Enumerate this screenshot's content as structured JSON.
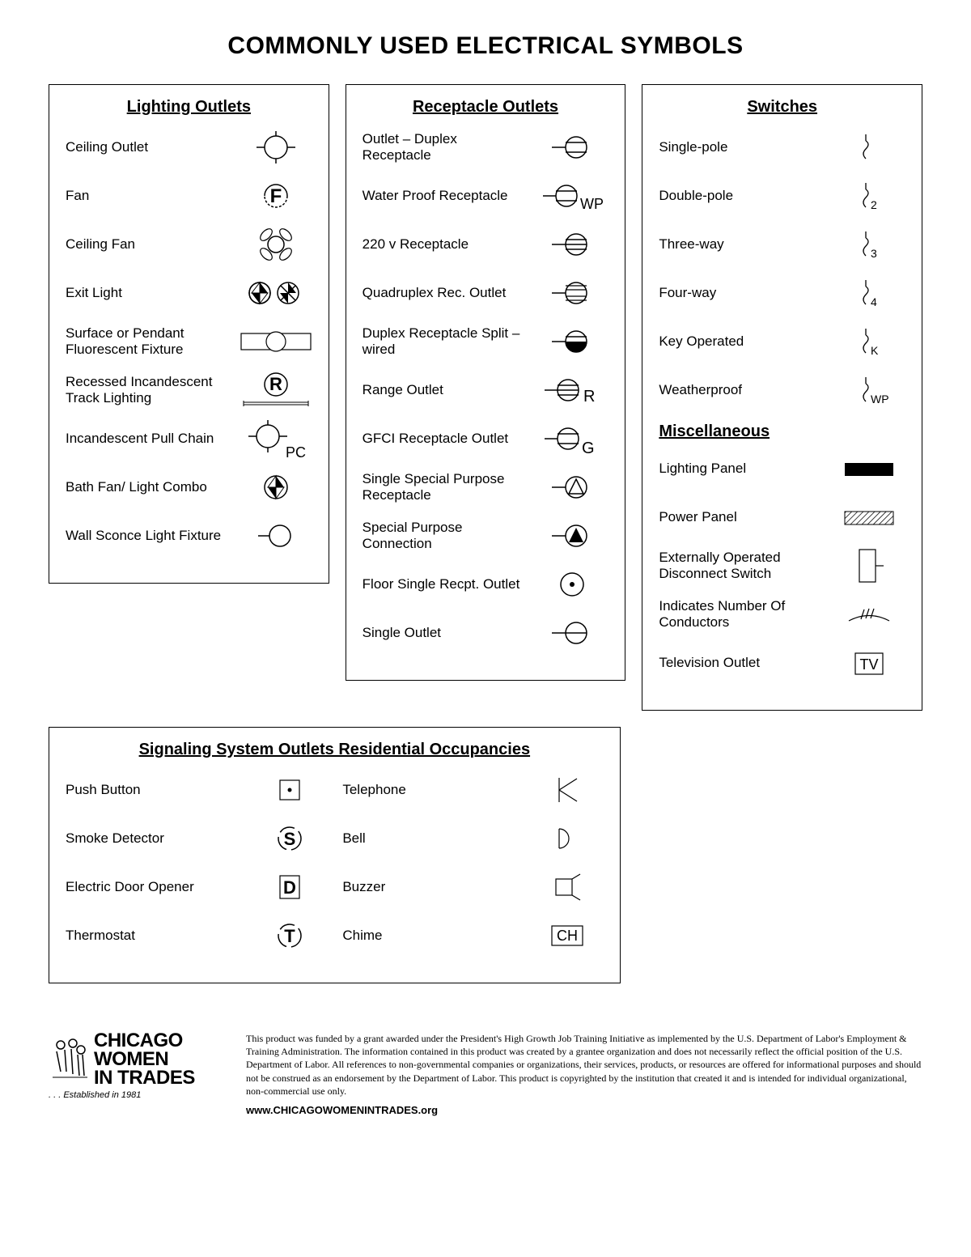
{
  "title": "COMMONLY USED ELECTRICAL SYMBOLS",
  "colors": {
    "stroke": "#000000",
    "fill_black": "#000000",
    "bg": "#ffffff"
  },
  "panels": {
    "lighting": {
      "title": "Lighting Outlets",
      "items": [
        {
          "label": "Ceiling Outlet"
        },
        {
          "label": "Fan"
        },
        {
          "label": "Ceiling Fan"
        },
        {
          "label": "Exit Light"
        },
        {
          "label": "Surface or Pendant Fluorescent Fixture"
        },
        {
          "label": "Recessed Incandescent Track Lighting"
        },
        {
          "label": "Incandescent Pull Chain"
        },
        {
          "label": "Bath Fan/ Light Combo"
        },
        {
          "label": "Wall Sconce Light Fixture"
        }
      ]
    },
    "receptacle": {
      "title": "Receptacle Outlets",
      "items": [
        {
          "label": "Outlet – Duplex Receptacle"
        },
        {
          "label": "Water Proof Receptacle"
        },
        {
          "label": "220 v Receptacle"
        },
        {
          "label": "Quadruplex Rec. Outlet"
        },
        {
          "label": "Duplex Receptacle Split – wired"
        },
        {
          "label": "Range Outlet"
        },
        {
          "label": "GFCI Receptacle Outlet"
        },
        {
          "label": "Single Special Purpose Receptacle"
        },
        {
          "label": "Special Purpose Connection"
        },
        {
          "label": "Floor Single Recpt. Outlet"
        },
        {
          "label": "Single Outlet"
        }
      ]
    },
    "switches": {
      "title": "Switches",
      "items": [
        {
          "label": "Single-pole",
          "sub": ""
        },
        {
          "label": "Double-pole",
          "sub": "2"
        },
        {
          "label": "Three-way",
          "sub": "3"
        },
        {
          "label": "Four-way",
          "sub": "4"
        },
        {
          "label": "Key Operated",
          "sub": "K"
        },
        {
          "label": "Weatherproof",
          "sub": "WP"
        }
      ]
    },
    "misc": {
      "title": "Miscellaneous",
      "items": [
        {
          "label": "Lighting Panel"
        },
        {
          "label": "Power Panel"
        },
        {
          "label": "Externally Operated Disconnect Switch"
        },
        {
          "label": "Indicates Number Of Conductors"
        },
        {
          "label": "Television Outlet"
        }
      ]
    },
    "signaling": {
      "title": "Signaling System Outlets Residential Occupancies",
      "left": [
        {
          "label": "Push Button"
        },
        {
          "label": "Smoke Detector"
        },
        {
          "label": "Electric Door Opener"
        },
        {
          "label": "Thermostat"
        }
      ],
      "right": [
        {
          "label": "Telephone"
        },
        {
          "label": "Bell"
        },
        {
          "label": "Buzzer"
        },
        {
          "label": "Chime"
        }
      ]
    }
  },
  "footer": {
    "logo_line1": "CHICAGO",
    "logo_line2": "WOMEN",
    "logo_line3": "IN TRADES",
    "established": ". . . Established in 1981",
    "disclaimer": "This product was funded by a grant awarded under the President's High Growth Job Training Initiative as implemented by the U.S. Department of Labor's Employment & Training Administration.  The information contained in this product was created by a grantee organization and does not necessarily reflect the official position of the U.S. Department of Labor. All references to non-governmental companies or organizations, their services, products, or resources are offered for informational purposes and should not be construed as an endorsement by the Department of Labor.  This product is copyrighted by the institution that created it and is intended for individual organizational, non-commercial use only.",
    "website": "www.CHICAGOWOMENINTRADES.org"
  }
}
